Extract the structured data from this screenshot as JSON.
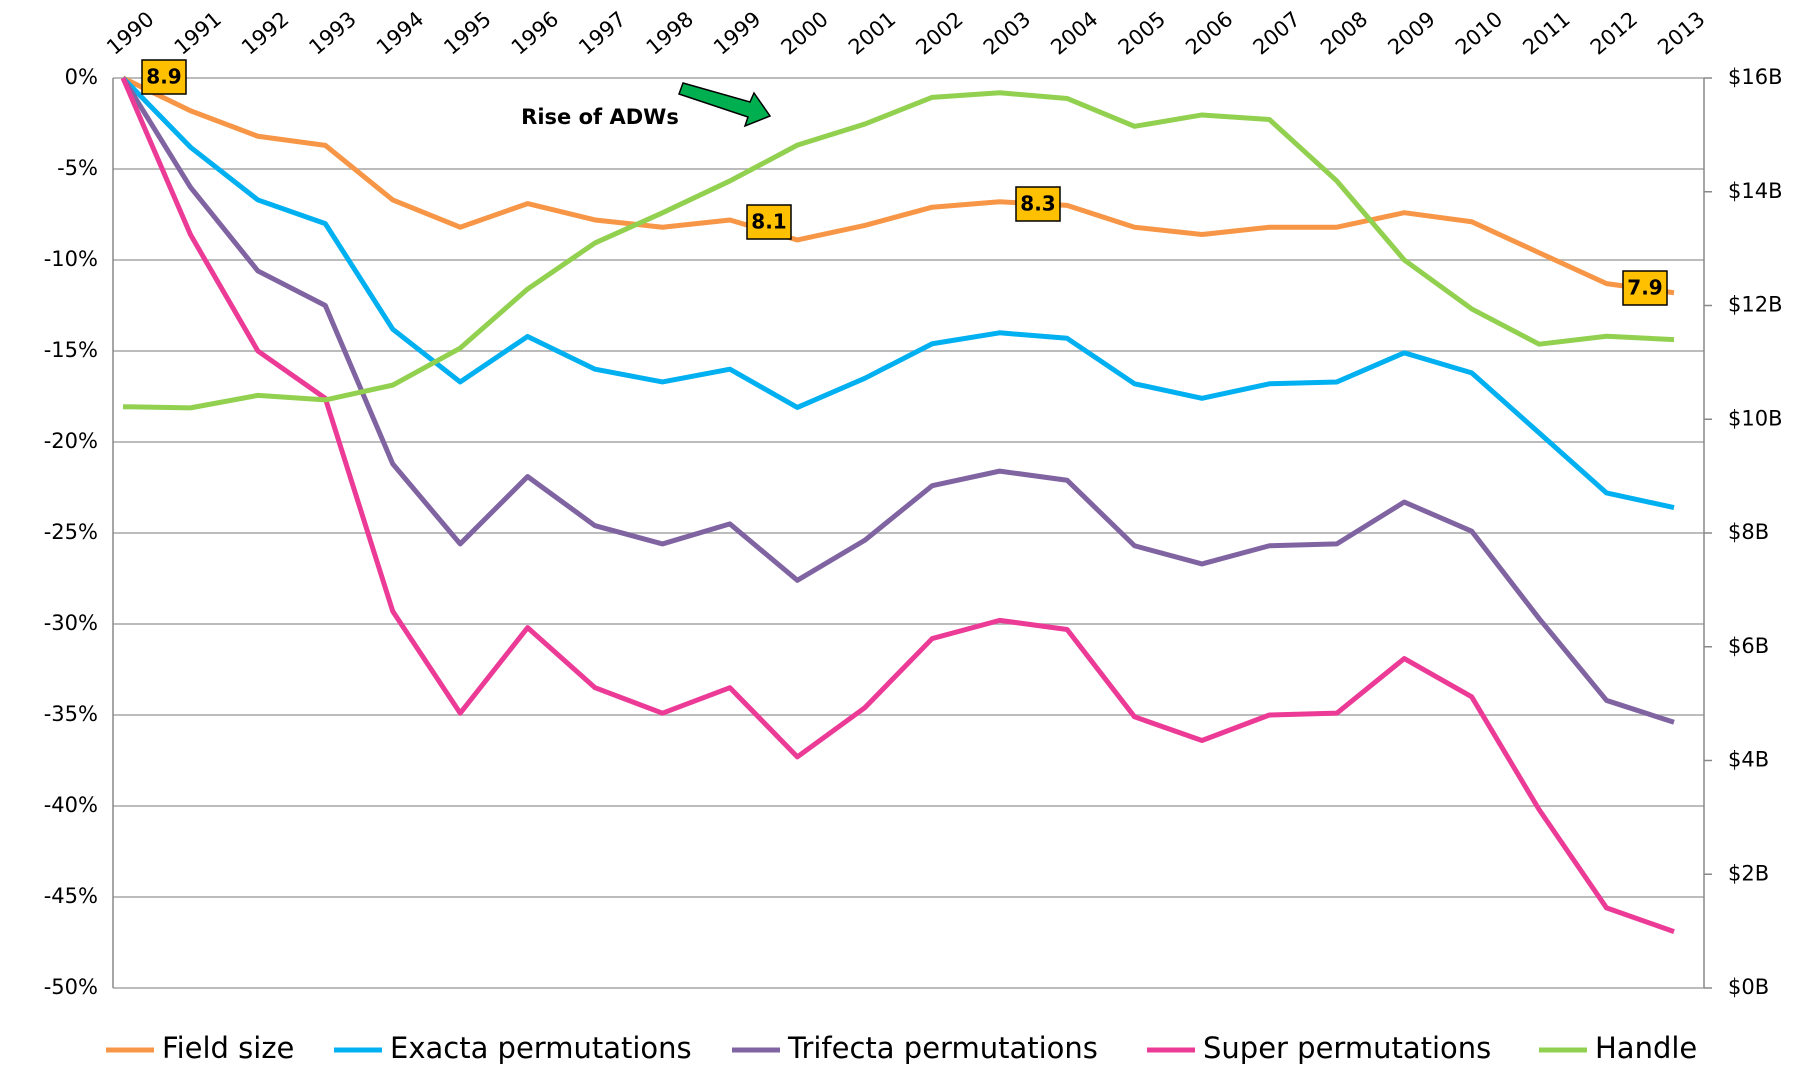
{
  "chart_data": {
    "type": "line",
    "categories": [
      "1990",
      "1991",
      "1992",
      "1993",
      "1994",
      "1995",
      "1996",
      "1997",
      "1998",
      "1999",
      "2000",
      "2001",
      "2002",
      "2003",
      "2004",
      "2005",
      "2006",
      "2007",
      "2008",
      "2009",
      "2010",
      "2011",
      "2012",
      "2013"
    ],
    "series": [
      {
        "name": "Field size",
        "color": "#f79646",
        "values": [
          0,
          -1.8,
          -3.2,
          -3.7,
          -6.7,
          -8.2,
          -6.9,
          -7.8,
          -8.2,
          -7.8,
          -8.9,
          -8.1,
          -7.1,
          -6.8,
          -7.0,
          -8.2,
          -8.6,
          -8.2,
          -8.2,
          -7.4,
          -7.9,
          -9.6,
          -11.3,
          -11.8
        ]
      },
      {
        "name": "Exacta permutations",
        "color": "#00b0f0",
        "values": [
          0,
          -3.8,
          -6.7,
          -8.0,
          -13.8,
          -16.7,
          -14.2,
          -16.0,
          -16.7,
          -16.0,
          -18.1,
          -16.5,
          -14.6,
          -14.0,
          -14.3,
          -16.8,
          -17.6,
          -16.8,
          -16.7,
          -15.1,
          -16.2,
          -19.5,
          -22.8,
          -23.6
        ]
      },
      {
        "name": "Trifecta permutations",
        "color": "#8064a2",
        "values": [
          0,
          -6.0,
          -10.6,
          -12.5,
          -21.2,
          -25.6,
          -21.9,
          -24.6,
          -25.6,
          -24.5,
          -27.6,
          -25.4,
          -22.4,
          -21.6,
          -22.1,
          -25.7,
          -26.7,
          -25.7,
          -25.6,
          -23.3,
          -24.9,
          -29.7,
          -34.2,
          -35.4
        ]
      },
      {
        "name": "Super permutations",
        "color": "#ec3b97",
        "values": [
          0,
          -8.6,
          -15.0,
          -17.6,
          -29.3,
          -34.9,
          -30.2,
          -33.5,
          -34.9,
          -33.5,
          -37.3,
          -34.6,
          -30.8,
          -29.8,
          -30.3,
          -35.1,
          -36.4,
          -35.0,
          -34.9,
          -31.9,
          -34.0,
          -40.2,
          -45.6,
          -46.9
        ]
      },
      {
        "name": "Handle",
        "color": "#92d050",
        "axis": "y2",
        "values": [
          10.22,
          10.2,
          10.42,
          10.34,
          10.6,
          11.25,
          12.29,
          13.1,
          13.63,
          14.19,
          14.82,
          15.19,
          15.66,
          15.74,
          15.64,
          15.15,
          15.35,
          15.27,
          14.19,
          12.8,
          11.94,
          11.32,
          11.46,
          11.4
        ]
      }
    ],
    "ylim": [
      -50,
      0
    ],
    "yticks": [
      {
        "value": 0,
        "label": "0%"
      },
      {
        "value": -5,
        "label": "-5%"
      },
      {
        "value": -10,
        "label": "-10%"
      },
      {
        "value": -15,
        "label": "-15%"
      },
      {
        "value": -20,
        "label": "-20%"
      },
      {
        "value": -25,
        "label": "-25%"
      },
      {
        "value": -30,
        "label": "-30%"
      },
      {
        "value": -35,
        "label": "-35%"
      },
      {
        "value": -40,
        "label": "-40%"
      },
      {
        "value": -45,
        "label": "-45%"
      },
      {
        "value": -50,
        "label": "-50%"
      }
    ],
    "y2lim": [
      0,
      16
    ],
    "y2ticks": [
      {
        "value": 0,
        "label": "$0B"
      },
      {
        "value": 2,
        "label": "$2B"
      },
      {
        "value": 4,
        "label": "$4B"
      },
      {
        "value": 6,
        "label": "$6B"
      },
      {
        "value": 8,
        "label": "$8B"
      },
      {
        "value": 10,
        "label": "$10B"
      },
      {
        "value": 12,
        "label": "$12B"
      },
      {
        "value": 14,
        "label": "$14B"
      },
      {
        "value": 16,
        "label": "$16B"
      }
    ],
    "grid": true,
    "legend": "bottom",
    "annotations": [
      "8.9",
      "8.1",
      "8.3",
      "7.9",
      "Rise of ADWs"
    ]
  }
}
